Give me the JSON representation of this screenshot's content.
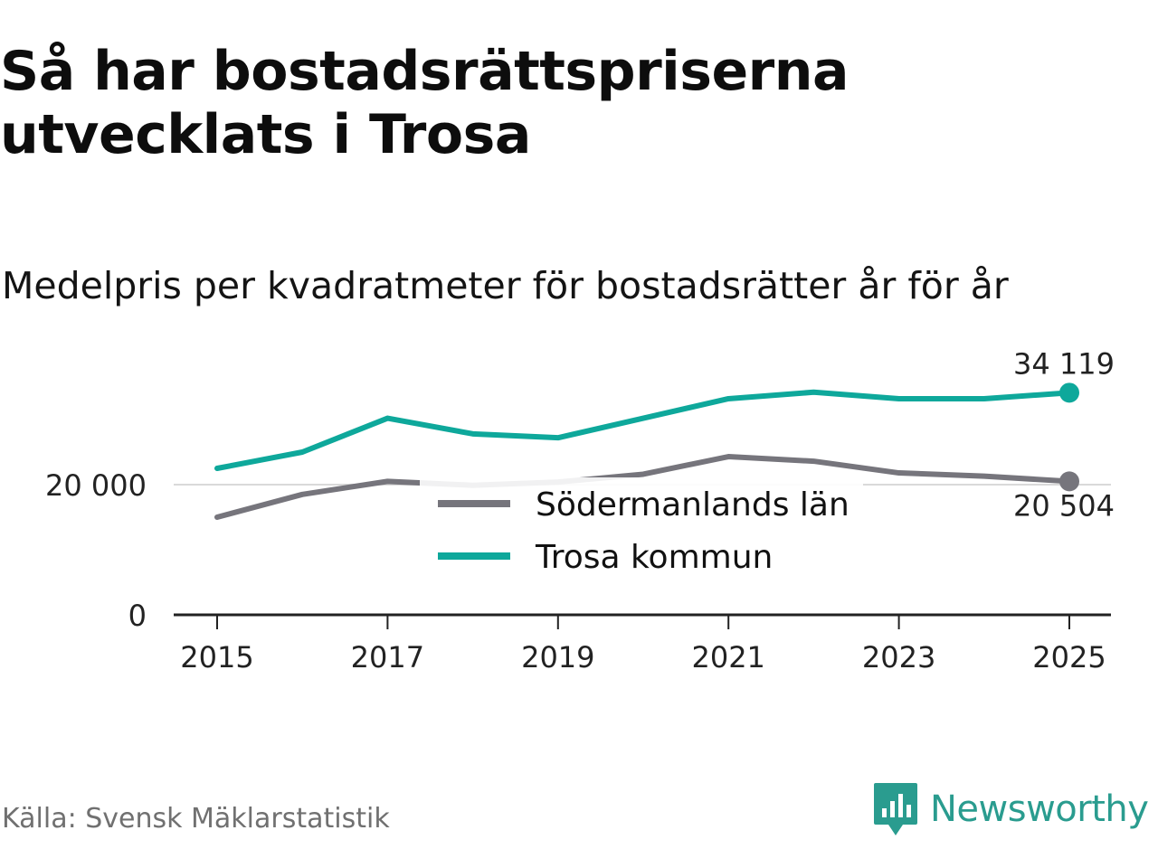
{
  "title": "Så har bostadsrättspriserna utvecklats i Trosa",
  "subtitle": "Medelpris per kvadratmeter för bostadsrätter år för år",
  "source": "Källa: Svensk Mäklarstatistik",
  "logo": {
    "text": "Newsworthy",
    "icon": "newsworthy-bar-chart-icon",
    "color": "#2a9c8f"
  },
  "chart_data": {
    "type": "line",
    "x": [
      2015,
      2016,
      2017,
      2018,
      2019,
      2020,
      2021,
      2022,
      2023,
      2024,
      2025
    ],
    "xticks": [
      2015,
      2017,
      2019,
      2021,
      2023,
      2025
    ],
    "xtick_labels": [
      "2015",
      "2017",
      "2019",
      "2021",
      "2023",
      "2025"
    ],
    "yticks": [
      0,
      20000
    ],
    "ytick_labels": [
      "0",
      "20 000"
    ],
    "ylim": [
      0,
      38000
    ],
    "xlim": [
      2014.5,
      2025.5
    ],
    "series": [
      {
        "name": "Södermanlands län",
        "color": "#76757c",
        "values": [
          15000,
          18500,
          20500,
          19900,
          20400,
          21600,
          24300,
          23600,
          21800,
          21300,
          20504
        ],
        "end_label": "20 504"
      },
      {
        "name": "Trosa kommun",
        "color": "#0ea89b",
        "values": [
          22500,
          25000,
          30200,
          27800,
          27200,
          30200,
          33200,
          34200,
          33200,
          33200,
          34119
        ],
        "end_label": "34 119"
      }
    ],
    "legend": [
      "Södermanlands län",
      "Trosa kommun"
    ],
    "legend_position": "center"
  }
}
